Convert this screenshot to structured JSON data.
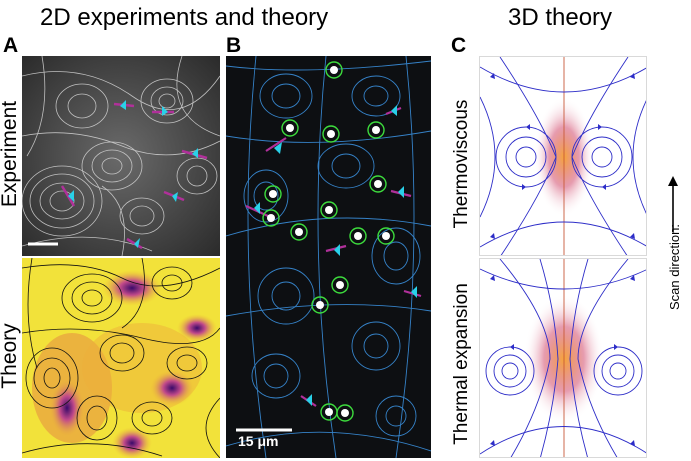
{
  "header": {
    "left_title": "2D experiments and theory",
    "right_title": "3D theory"
  },
  "panels": {
    "a_letter": "A",
    "b_letter": "B",
    "c_letter": "C"
  },
  "panel_a": {
    "experiment_label": "Experiment",
    "theory_label": "Theory"
  },
  "panel_b": {
    "scale_bar_label": "15 μm"
  },
  "panel_c": {
    "top_label": "Thermoviscous",
    "bottom_label": "Thermal expansion",
    "scan_label": "Scan direction:"
  },
  "colors": {
    "marker_ring": "#3ddc3d",
    "cyan_marker": "#29d0e8",
    "dark_bg": "#0d0f12",
    "streamline_blue": "#3a8fdc",
    "arrow_blue": "#2d2dc8",
    "magenta": "#b0309a"
  }
}
